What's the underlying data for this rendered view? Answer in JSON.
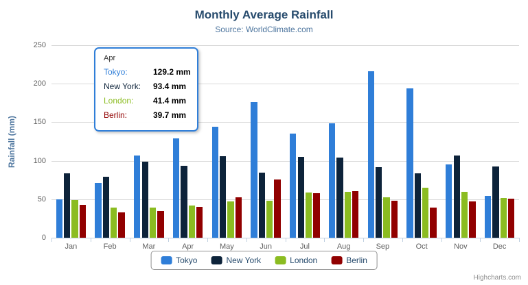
{
  "header": {
    "title": "Monthly Average Rainfall",
    "subtitle": "Source: WorldClimate.com"
  },
  "axes": {
    "y_title": "Rainfall (mm)"
  },
  "credits": "Highcharts.com",
  "tooltip": {
    "header": "Apr",
    "border_color": "#2f7ed8",
    "rows": [
      {
        "label": "Tokyo:",
        "value": "129.2 mm",
        "color": "#2f7ed8"
      },
      {
        "label": "New York:",
        "value": "93.4 mm",
        "color": "#0d233a"
      },
      {
        "label": "London:",
        "value": "41.4 mm",
        "color": "#8bbc21"
      },
      {
        "label": "Berlin:",
        "value": "39.7 mm",
        "color": "#910000"
      }
    ]
  },
  "chart_data": {
    "type": "bar",
    "title": "Monthly Average Rainfall",
    "subtitle": "Source: WorldClimate.com",
    "xlabel": "",
    "ylabel": "Rainfall (mm)",
    "ylim": [
      0,
      250
    ],
    "ytick_interval": 50,
    "grid": true,
    "legend_position": "bottom",
    "categories": [
      "Jan",
      "Feb",
      "Mar",
      "Apr",
      "May",
      "Jun",
      "Jul",
      "Aug",
      "Sep",
      "Oct",
      "Nov",
      "Dec"
    ],
    "series": [
      {
        "name": "Tokyo",
        "color": "#2f7ed8",
        "values": [
          49.9,
          71.5,
          106.4,
          129.2,
          144.0,
          176.0,
          135.6,
          148.5,
          216.4,
          194.1,
          95.6,
          54.4
        ]
      },
      {
        "name": "New York",
        "color": "#0d233a",
        "values": [
          83.6,
          78.8,
          98.5,
          93.4,
          106.0,
          84.5,
          105.0,
          104.3,
          91.2,
          83.5,
          106.6,
          92.3
        ]
      },
      {
        "name": "London",
        "color": "#8bbc21",
        "values": [
          48.9,
          38.8,
          39.3,
          41.4,
          47.0,
          48.3,
          59.0,
          59.6,
          52.4,
          65.2,
          59.3,
          51.2
        ]
      },
      {
        "name": "Berlin",
        "color": "#910000",
        "values": [
          42.4,
          33.2,
          34.5,
          39.7,
          52.6,
          75.5,
          57.4,
          60.4,
          47.6,
          39.1,
          46.8,
          51.1
        ]
      }
    ]
  }
}
